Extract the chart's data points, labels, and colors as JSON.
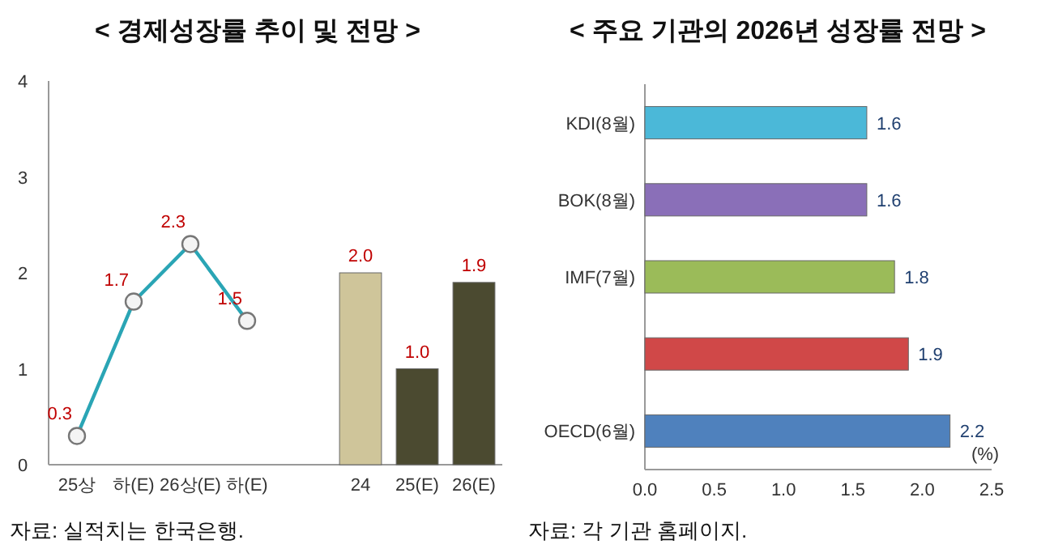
{
  "chart_data": [
    {
      "type": "line",
      "title": "< 경제성장률 추이 및 전망 >",
      "categories": [
        "25상",
        "하(E)",
        "26상(E)",
        "하(E)",
        null,
        "24",
        "25(E)",
        "26(E)"
      ],
      "series": [
        {
          "type": "line",
          "color": "#2aa5b5",
          "marker": "circle",
          "values": [
            0.3,
            1.7,
            2.3,
            1.5,
            null,
            null,
            null,
            null
          ],
          "value_labels": [
            "0.3",
            "1.7",
            "2.3",
            "1.5",
            null,
            null,
            null,
            null
          ]
        },
        {
          "type": "bar",
          "colors": [
            null,
            null,
            null,
            null,
            null,
            "#cfc59a",
            "#4b4a30",
            "#4b4a30"
          ],
          "values": [
            null,
            null,
            null,
            null,
            null,
            2.0,
            1.0,
            1.9
          ],
          "value_labels": [
            null,
            null,
            null,
            null,
            null,
            "2.0",
            "1.0",
            "1.9"
          ]
        }
      ],
      "ylim": [
        0,
        4
      ],
      "yticks": [
        0,
        1,
        2,
        3,
        4
      ],
      "grid": false,
      "annotations": [
        "자료: 실적치는 한국은행."
      ]
    },
    {
      "type": "bar",
      "orientation": "horizontal",
      "title": "< 주요 기관의 2026년 성장률 전망 >",
      "categories": [
        "KDI(8월)",
        "BOK(8월)",
        "IMF(7월)",
        null,
        "OECD(6월)"
      ],
      "values": [
        1.6,
        1.6,
        1.8,
        1.9,
        2.2
      ],
      "colors": [
        "#4bb8d8",
        "#8a6fb8",
        "#9bbb59",
        "#d04848",
        "#4f81bd"
      ],
      "xlim": [
        0,
        2.5
      ],
      "xticks": [
        {
          "value": 0,
          "label": "0.0"
        },
        {
          "value": 0.5,
          "label": "0.5"
        },
        {
          "value": 1,
          "label": "1.0"
        },
        {
          "value": 1.5,
          "label": "1.5"
        },
        {
          "value": 2,
          "label": "2.0"
        },
        {
          "value": 2.5,
          "label": "2.5"
        }
      ],
      "data_labels": true,
      "grid": false,
      "annotations": [
        "(%)",
        "자료: 각 기관 홈페이지."
      ]
    }
  ]
}
